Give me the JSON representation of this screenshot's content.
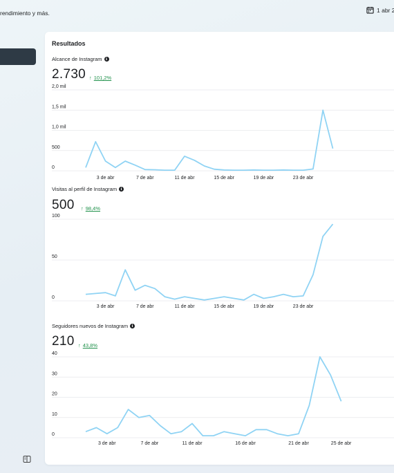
{
  "header": {
    "subtitle": "rendimiento y más.",
    "date_range": "1 abr 2"
  },
  "card": {
    "title": "Resultados"
  },
  "metrics": [
    {
      "label": "Alcance de Instagram",
      "value": "2.730",
      "delta": "101,2%"
    },
    {
      "label": "Visitas al perfil de Instagram",
      "value": "500",
      "delta": "98,4%"
    },
    {
      "label": "Seguidores nuevos de Instagram",
      "value": "210",
      "delta": "43,8%"
    }
  ],
  "colors": {
    "line": "#8fd3f4",
    "positive": "#20914b",
    "grid": "#e6e8eb"
  },
  "icons": {
    "calendar": "calendar-icon",
    "panel": "sidebar-toggle-icon",
    "info": "info-icon",
    "arrow": "arrow-up-icon"
  },
  "chart_data": [
    {
      "type": "line",
      "ylabels": [
        "2,0 mil",
        "1,5 mil",
        "1,0 mil",
        "500",
        "0"
      ],
      "yticks": [
        2000,
        1500,
        1000,
        500,
        0
      ],
      "ylim": [
        0,
        2000
      ],
      "xlabels": [
        "3 de abr",
        "7 de abr",
        "11 de abr",
        "15 de abr",
        "19 de abr",
        "23 de abr"
      ],
      "xlabel_days": [
        3,
        7,
        11,
        15,
        19,
        23
      ],
      "x_start": 1,
      "values": [
        80,
        720,
        240,
        80,
        240,
        140,
        30,
        25,
        15,
        15,
        360,
        260,
        120,
        40,
        20,
        15,
        15,
        20,
        15,
        15,
        20,
        15,
        15,
        45,
        1500,
        550
      ]
    },
    {
      "type": "line",
      "ylabels": [
        "100",
        "50",
        "0"
      ],
      "yticks": [
        100,
        50,
        0
      ],
      "ylim": [
        0,
        100
      ],
      "xlabels": [
        "3 de abr",
        "7 de abr",
        "11 de abr",
        "15 de abr",
        "19 de abr",
        "23 de abr"
      ],
      "xlabel_days": [
        3,
        7,
        11,
        15,
        19,
        23
      ],
      "x_start": 1,
      "values": [
        8,
        9,
        10,
        6,
        38,
        13,
        19,
        15,
        5,
        2,
        5,
        3,
        1,
        3,
        5,
        3,
        1,
        8,
        3,
        5,
        8,
        5,
        6,
        32,
        79,
        94
      ]
    },
    {
      "type": "line",
      "ylabels": [
        "40",
        "30",
        "20",
        "10",
        "0"
      ],
      "yticks": [
        40,
        30,
        20,
        10,
        0
      ],
      "ylim": [
        0,
        40
      ],
      "xlabels": [
        "3 de abr",
        "7 de abr",
        "11 de abr",
        "16 de abr",
        "21 de abr",
        "25 de abr"
      ],
      "xlabel_days": [
        3,
        7,
        11,
        16,
        21,
        25
      ],
      "x_start": 1,
      "values": [
        3,
        5,
        2,
        5,
        14,
        10,
        11,
        6,
        2,
        3,
        7,
        1,
        1,
        3,
        2,
        1,
        4,
        4,
        2,
        1,
        2,
        16,
        40,
        31,
        18
      ]
    }
  ]
}
